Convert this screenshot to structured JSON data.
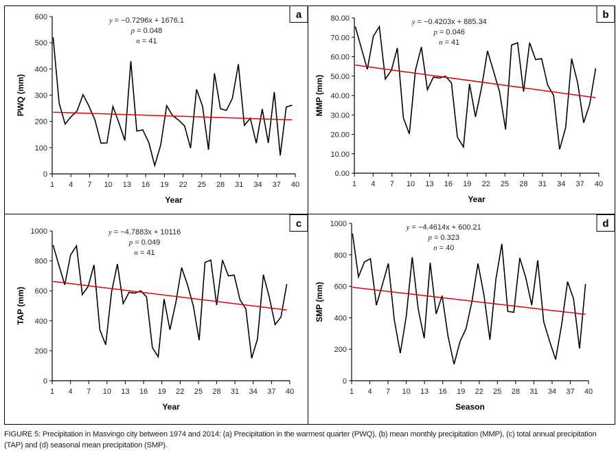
{
  "figure": {
    "caption_label": "FIGURE 5:",
    "caption_text": " Precipitation in Masvingo city between 1974 and 2014: (a) Precipitation in the warmest quarter (PWQ), (b) mean monthly precipitation (MMP), (c) total annual precipitation (TAP) and (d) seasonal mean precipitation (SMP)."
  },
  "chart_data": [
    {
      "type": "line",
      "panel_label": "a",
      "title": "",
      "xlabel": "Year",
      "ylabel": "PWQ (mm)",
      "xlim": [
        1,
        40
      ],
      "ylim": [
        0,
        600
      ],
      "xticks": [
        1,
        4,
        7,
        10,
        13,
        16,
        19,
        22,
        25,
        28,
        31,
        34,
        37,
        40
      ],
      "yticks": [
        0,
        100,
        200,
        300,
        400,
        500,
        600
      ],
      "ytick_labels": [
        "0",
        "100",
        "200",
        "300",
        "400",
        "500",
        "600"
      ],
      "annotation": {
        "equation": "y = −0.7296x + 1676.1",
        "p": "p = 0.048",
        "n": "n = 41"
      },
      "grid": false,
      "series": [
        {
          "name": "PWQ",
          "color": "#000000",
          "x": [
            1,
            2,
            3,
            4,
            5,
            6,
            7,
            8,
            9,
            10,
            11,
            12,
            13,
            14,
            15,
            16,
            17,
            18,
            19,
            20,
            21,
            22,
            23,
            24,
            25,
            26,
            27,
            28,
            29,
            30,
            31,
            32,
            33,
            34,
            35,
            36,
            37,
            38,
            39,
            40,
            41
          ],
          "values": [
            520,
            270,
            190,
            218,
            240,
            302,
            258,
            205,
            117,
            118,
            257,
            195,
            127,
            430,
            163,
            168,
            120,
            32,
            110,
            260,
            222,
            205,
            183,
            98,
            322,
            258,
            92,
            383,
            248,
            242,
            288,
            418,
            185,
            212,
            117,
            247,
            118,
            312,
            70,
            255,
            262
          ]
        },
        {
          "name": "Trend",
          "color": "#e00000",
          "type": "trendline",
          "x": [
            1,
            41
          ],
          "values": [
            235,
            206
          ]
        }
      ]
    },
    {
      "type": "line",
      "panel_label": "b",
      "title": "",
      "xlabel": "Year",
      "ylabel": "MMP (mm)",
      "xlim": [
        1,
        40
      ],
      "ylim": [
        0,
        80
      ],
      "xticks": [
        1,
        4,
        7,
        10,
        13,
        16,
        19,
        22,
        25,
        28,
        31,
        34,
        37,
        40
      ],
      "yticks": [
        0,
        10,
        20,
        30,
        40,
        50,
        60,
        70,
        80
      ],
      "ytick_labels": [
        "0.00",
        "10.00",
        "20.00",
        "30.00",
        "40.00",
        "50.00",
        "60.00",
        "70.00",
        "80.00"
      ],
      "annotation": {
        "equation": "y = −0.4203x + 885.34",
        "p": "p = 0.046",
        "n": "n = 41"
      },
      "grid": false,
      "series": [
        {
          "name": "MMP",
          "color": "#000000",
          "x": [
            1,
            2,
            3,
            4,
            5,
            6,
            7,
            8,
            9,
            10,
            11,
            12,
            13,
            14,
            15,
            16,
            17,
            18,
            19,
            20,
            21,
            22,
            23,
            24,
            25,
            26,
            27,
            28,
            29,
            30,
            31,
            32,
            33,
            34,
            35,
            36,
            37,
            38,
            39,
            40,
            41
          ],
          "values": [
            75.5,
            64.5,
            53.5,
            70.5,
            75.5,
            48.5,
            53,
            64.5,
            28.5,
            20.2,
            53,
            65,
            43,
            49.5,
            49,
            50,
            46.5,
            18.5,
            13.5,
            46,
            29,
            44,
            63,
            52.5,
            42,
            22.5,
            66,
            67.2,
            42,
            67.2,
            58.5,
            59,
            45.5,
            40,
            12.3,
            23.5,
            59,
            46.5,
            26,
            35.5,
            54
          ]
        },
        {
          "name": "Trend",
          "color": "#e00000",
          "type": "trendline",
          "x": [
            1,
            41
          ],
          "values": [
            55.7,
            38.9
          ]
        }
      ]
    },
    {
      "type": "line",
      "panel_label": "c",
      "title": "",
      "xlabel": "Year",
      "ylabel": "TAP (mm)",
      "xlim": [
        1,
        40
      ],
      "ylim": [
        0,
        1000
      ],
      "xticks": [
        1,
        4,
        7,
        10,
        13,
        16,
        19,
        22,
        25,
        28,
        31,
        34,
        37,
        40
      ],
      "yticks": [
        0,
        200,
        400,
        600,
        800,
        1000
      ],
      "ytick_labels": [
        "0",
        "200",
        "400",
        "600",
        "800",
        "1000"
      ],
      "annotation": {
        "equation": "y = −4.7883x + 10116",
        "p": "p = 0.049",
        "n": "n = 41"
      },
      "grid": false,
      "series": [
        {
          "name": "TAP",
          "color": "#000000",
          "x": [
            1,
            2,
            3,
            4,
            5,
            6,
            7,
            8,
            9,
            10,
            11,
            12,
            13,
            14,
            15,
            16,
            17,
            18,
            19,
            20,
            21,
            22,
            23,
            24,
            25,
            26,
            27,
            28,
            29,
            30,
            31,
            32,
            33,
            34,
            35,
            36,
            37,
            38,
            39,
            40,
            41
          ],
          "values": [
            905,
            770,
            640,
            840,
            900,
            575,
            630,
            773,
            340,
            240,
            590,
            780,
            515,
            590,
            585,
            600,
            560,
            220,
            160,
            545,
            340,
            520,
            755,
            640,
            500,
            270,
            790,
            805,
            505,
            805,
            700,
            705,
            540,
            480,
            150,
            280,
            708,
            560,
            375,
            425,
            645
          ]
        },
        {
          "name": "Trend",
          "color": "#e00000",
          "type": "trendline",
          "x": [
            1,
            41
          ],
          "values": [
            663,
            472
          ]
        }
      ]
    },
    {
      "type": "line",
      "panel_label": "d",
      "title": "",
      "xlabel": "Season",
      "ylabel": "SMP (mm)",
      "xlim": [
        1,
        40
      ],
      "ylim": [
        0,
        1000
      ],
      "xticks": [
        1,
        4,
        7,
        10,
        13,
        16,
        19,
        22,
        25,
        28,
        31,
        34,
        37,
        40
      ],
      "yticks": [
        0,
        200,
        400,
        600,
        800,
        1000
      ],
      "ytick_labels": [
        "0",
        "200",
        "400",
        "600",
        "800",
        "1000"
      ],
      "annotation": {
        "equation": "y = −4.4614x + 600.21",
        "p": "p = 0.323",
        "n": "n = 40"
      },
      "grid": false,
      "series": [
        {
          "name": "SMP",
          "color": "#000000",
          "x": [
            1,
            2,
            3,
            4,
            5,
            6,
            7,
            8,
            9,
            10,
            11,
            12,
            13,
            14,
            15,
            16,
            17,
            18,
            19,
            20,
            21,
            22,
            23,
            24,
            25,
            26,
            27,
            28,
            29,
            30,
            31,
            32,
            33,
            34,
            35,
            36,
            37,
            38,
            39,
            40
          ],
          "values": [
            935,
            660,
            755,
            775,
            480,
            610,
            745,
            385,
            175,
            410,
            785,
            455,
            270,
            750,
            425,
            540,
            280,
            105,
            250,
            330,
            505,
            745,
            545,
            260,
            645,
            870,
            440,
            435,
            780,
            655,
            480,
            765,
            375,
            250,
            135,
            355,
            630,
            520,
            205,
            615
          ]
        },
        {
          "name": "Trend",
          "color": "#e00000",
          "type": "trendline",
          "x": [
            1,
            40
          ],
          "values": [
            594,
            422
          ]
        }
      ]
    }
  ]
}
